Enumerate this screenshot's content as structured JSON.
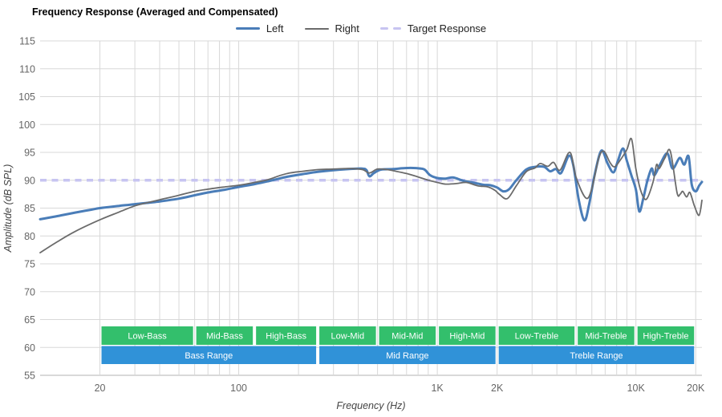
{
  "header": {
    "title": "Frequency Response (Averaged and Compensated)"
  },
  "legend": {
    "items": [
      {
        "label": "Left",
        "color": "#4a7db8",
        "style": "solid"
      },
      {
        "label": "Right",
        "color": "#6b6b6b",
        "style": "solid"
      },
      {
        "label": "Target Response",
        "color": "#c7c4f1",
        "style": "dashed"
      }
    ]
  },
  "chart_data": {
    "type": "line",
    "title": "Frequency Response (Averaged and Compensated)",
    "xlabel": "Frequency (Hz)",
    "ylabel": "Amplitude (dB SPL)",
    "x_scale": "log",
    "x_range": [
      10,
      21500
    ],
    "y_range": [
      55,
      115
    ],
    "y_step": 5,
    "grid": true,
    "legend_position": "top-center",
    "y_ticks": [
      115,
      110,
      105,
      100,
      95,
      90,
      85,
      80,
      75,
      70,
      65,
      60,
      55
    ],
    "x_ticks": [
      {
        "value": 20,
        "label": "20"
      },
      {
        "value": 100,
        "label": "100"
      },
      {
        "value": 1000,
        "label": "1K"
      },
      {
        "value": 2000,
        "label": "2K"
      },
      {
        "value": 10000,
        "label": "10K"
      },
      {
        "value": 20000,
        "label": "20K"
      }
    ],
    "x_grid_minor": [
      20,
      30,
      40,
      50,
      60,
      70,
      80,
      90,
      100,
      200,
      300,
      400,
      500,
      600,
      700,
      800,
      900,
      1000,
      2000,
      3000,
      4000,
      5000,
      6000,
      7000,
      8000,
      9000,
      10000,
      20000
    ],
    "target_response_db": 90,
    "target_color": "#c7c4f1",
    "grid_color": "#d8d8d8",
    "axis_line_color": "#b3b3b3",
    "tick_label_color": "#666666",
    "axis_title_color": "#444444",
    "series": [
      {
        "name": "Left",
        "color": "#4a7db8",
        "width": 3,
        "points": [
          [
            10,
            83.0
          ],
          [
            12,
            83.5
          ],
          [
            15,
            84.2
          ],
          [
            18,
            84.7
          ],
          [
            20,
            85.0
          ],
          [
            25,
            85.4
          ],
          [
            30,
            85.7
          ],
          [
            40,
            86.2
          ],
          [
            50,
            86.7
          ],
          [
            60,
            87.3
          ],
          [
            70,
            87.8
          ],
          [
            85,
            88.3
          ],
          [
            100,
            88.8
          ],
          [
            120,
            89.3
          ],
          [
            140,
            89.8
          ],
          [
            160,
            90.3
          ],
          [
            180,
            90.7
          ],
          [
            210,
            91.1
          ],
          [
            250,
            91.5
          ],
          [
            300,
            91.8
          ],
          [
            360,
            92.0
          ],
          [
            420,
            92.1
          ],
          [
            440,
            91.8
          ],
          [
            455,
            90.7
          ],
          [
            480,
            91.3
          ],
          [
            520,
            91.9
          ],
          [
            600,
            92.0
          ],
          [
            700,
            92.2
          ],
          [
            830,
            92.1
          ],
          [
            870,
            91.8
          ],
          [
            920,
            90.9
          ],
          [
            1000,
            90.4
          ],
          [
            1100,
            90.3
          ],
          [
            1200,
            90.5
          ],
          [
            1350,
            89.9
          ],
          [
            1500,
            89.6
          ],
          [
            1700,
            89.2
          ],
          [
            1850,
            89.1
          ],
          [
            2000,
            88.7
          ],
          [
            2150,
            88.0
          ],
          [
            2300,
            88.4
          ],
          [
            2500,
            90.0
          ],
          [
            2800,
            91.9
          ],
          [
            3100,
            92.4
          ],
          [
            3450,
            92.4
          ],
          [
            3700,
            91.6
          ],
          [
            3950,
            92.0
          ],
          [
            4200,
            91.3
          ],
          [
            4600,
            94.4
          ],
          [
            4850,
            92.5
          ],
          [
            5150,
            86.5
          ],
          [
            5500,
            82.8
          ],
          [
            5800,
            85.5
          ],
          [
            6200,
            91.0
          ],
          [
            6700,
            95.3
          ],
          [
            7200,
            93.0
          ],
          [
            7700,
            91.4
          ],
          [
            8100,
            93.4
          ],
          [
            8600,
            95.7
          ],
          [
            9000,
            93.5
          ],
          [
            9500,
            90.8
          ],
          [
            10000,
            88.3
          ],
          [
            10400,
            84.4
          ],
          [
            10900,
            86.8
          ],
          [
            11400,
            89.8
          ],
          [
            12000,
            92.1
          ],
          [
            12400,
            90.9
          ],
          [
            13300,
            93.0
          ],
          [
            14400,
            94.8
          ],
          [
            15300,
            92.1
          ],
          [
            16600,
            94.0
          ],
          [
            17500,
            92.8
          ],
          [
            18400,
            94.3
          ],
          [
            19100,
            89.2
          ],
          [
            20000,
            88.0
          ],
          [
            20800,
            89.0
          ],
          [
            21500,
            89.7
          ]
        ]
      },
      {
        "name": "Right",
        "color": "#6b6b6b",
        "width": 1.8,
        "points": [
          [
            10,
            77.0
          ],
          [
            12,
            78.8
          ],
          [
            15,
            80.8
          ],
          [
            20,
            82.9
          ],
          [
            25,
            84.3
          ],
          [
            30,
            85.4
          ],
          [
            35,
            86.0
          ],
          [
            40,
            86.5
          ],
          [
            50,
            87.3
          ],
          [
            60,
            88.0
          ],
          [
            70,
            88.4
          ],
          [
            85,
            88.8
          ],
          [
            100,
            89.1
          ],
          [
            120,
            89.6
          ],
          [
            140,
            90.1
          ],
          [
            160,
            90.8
          ],
          [
            180,
            91.3
          ],
          [
            210,
            91.6
          ],
          [
            250,
            91.9
          ],
          [
            300,
            92.0
          ],
          [
            360,
            92.1
          ],
          [
            420,
            91.9
          ],
          [
            455,
            91.3
          ],
          [
            500,
            92.0
          ],
          [
            560,
            91.9
          ],
          [
            620,
            91.6
          ],
          [
            700,
            91.2
          ],
          [
            800,
            90.6
          ],
          [
            900,
            90.0
          ],
          [
            1000,
            89.6
          ],
          [
            1100,
            89.3
          ],
          [
            1250,
            89.4
          ],
          [
            1400,
            89.6
          ],
          [
            1600,
            89.0
          ],
          [
            1800,
            88.8
          ],
          [
            1950,
            88.2
          ],
          [
            2050,
            87.5
          ],
          [
            2250,
            86.7
          ],
          [
            2500,
            89.0
          ],
          [
            2800,
            91.5
          ],
          [
            3100,
            92.2
          ],
          [
            3300,
            93.0
          ],
          [
            3600,
            92.5
          ],
          [
            3850,
            93.2
          ],
          [
            4150,
            91.8
          ],
          [
            4650,
            95.0
          ],
          [
            5000,
            90.5
          ],
          [
            5600,
            86.8
          ],
          [
            6000,
            88.5
          ],
          [
            6500,
            94.0
          ],
          [
            6900,
            95.2
          ],
          [
            7400,
            93.2
          ],
          [
            7800,
            92.4
          ],
          [
            8300,
            93.5
          ],
          [
            9000,
            95.5
          ],
          [
            9500,
            97.4
          ],
          [
            10000,
            92.0
          ],
          [
            10600,
            88.0
          ],
          [
            11300,
            86.6
          ],
          [
            12200,
            89.7
          ],
          [
            12700,
            92.8
          ],
          [
            13100,
            92.1
          ],
          [
            14000,
            94.0
          ],
          [
            14900,
            95.2
          ],
          [
            16100,
            87.8
          ],
          [
            16700,
            87.5
          ],
          [
            17200,
            88.0
          ],
          [
            18000,
            87.0
          ],
          [
            18700,
            87.8
          ],
          [
            19700,
            85.4
          ],
          [
            20800,
            83.7
          ],
          [
            21500,
            86.4
          ]
        ]
      }
    ],
    "bands": {
      "detail_color": "#33bf6c",
      "range_color": "#3092d8",
      "text_color": "#ffffff",
      "detail_row": [
        {
          "label": "Low-Bass",
          "from": 20,
          "to": 60
        },
        {
          "label": "Mid-Bass",
          "from": 60,
          "to": 120
        },
        {
          "label": "High-Bass",
          "from": 120,
          "to": 250
        },
        {
          "label": "Low-Mid",
          "from": 250,
          "to": 500
        },
        {
          "label": "Mid-Mid",
          "from": 500,
          "to": 1000
        },
        {
          "label": "High-Mid",
          "from": 1000,
          "to": 2000
        },
        {
          "label": "Low-Treble",
          "from": 2000,
          "to": 5000
        },
        {
          "label": "Mid-Treble",
          "from": 5000,
          "to": 10000
        },
        {
          "label": "High-Treble",
          "from": 10000,
          "to": 20000
        }
      ],
      "range_row": [
        {
          "label": "Bass Range",
          "from": 20,
          "to": 250
        },
        {
          "label": "Mid Range",
          "from": 250,
          "to": 2000
        },
        {
          "label": "Treble Range",
          "from": 2000,
          "to": 20000
        }
      ]
    }
  }
}
